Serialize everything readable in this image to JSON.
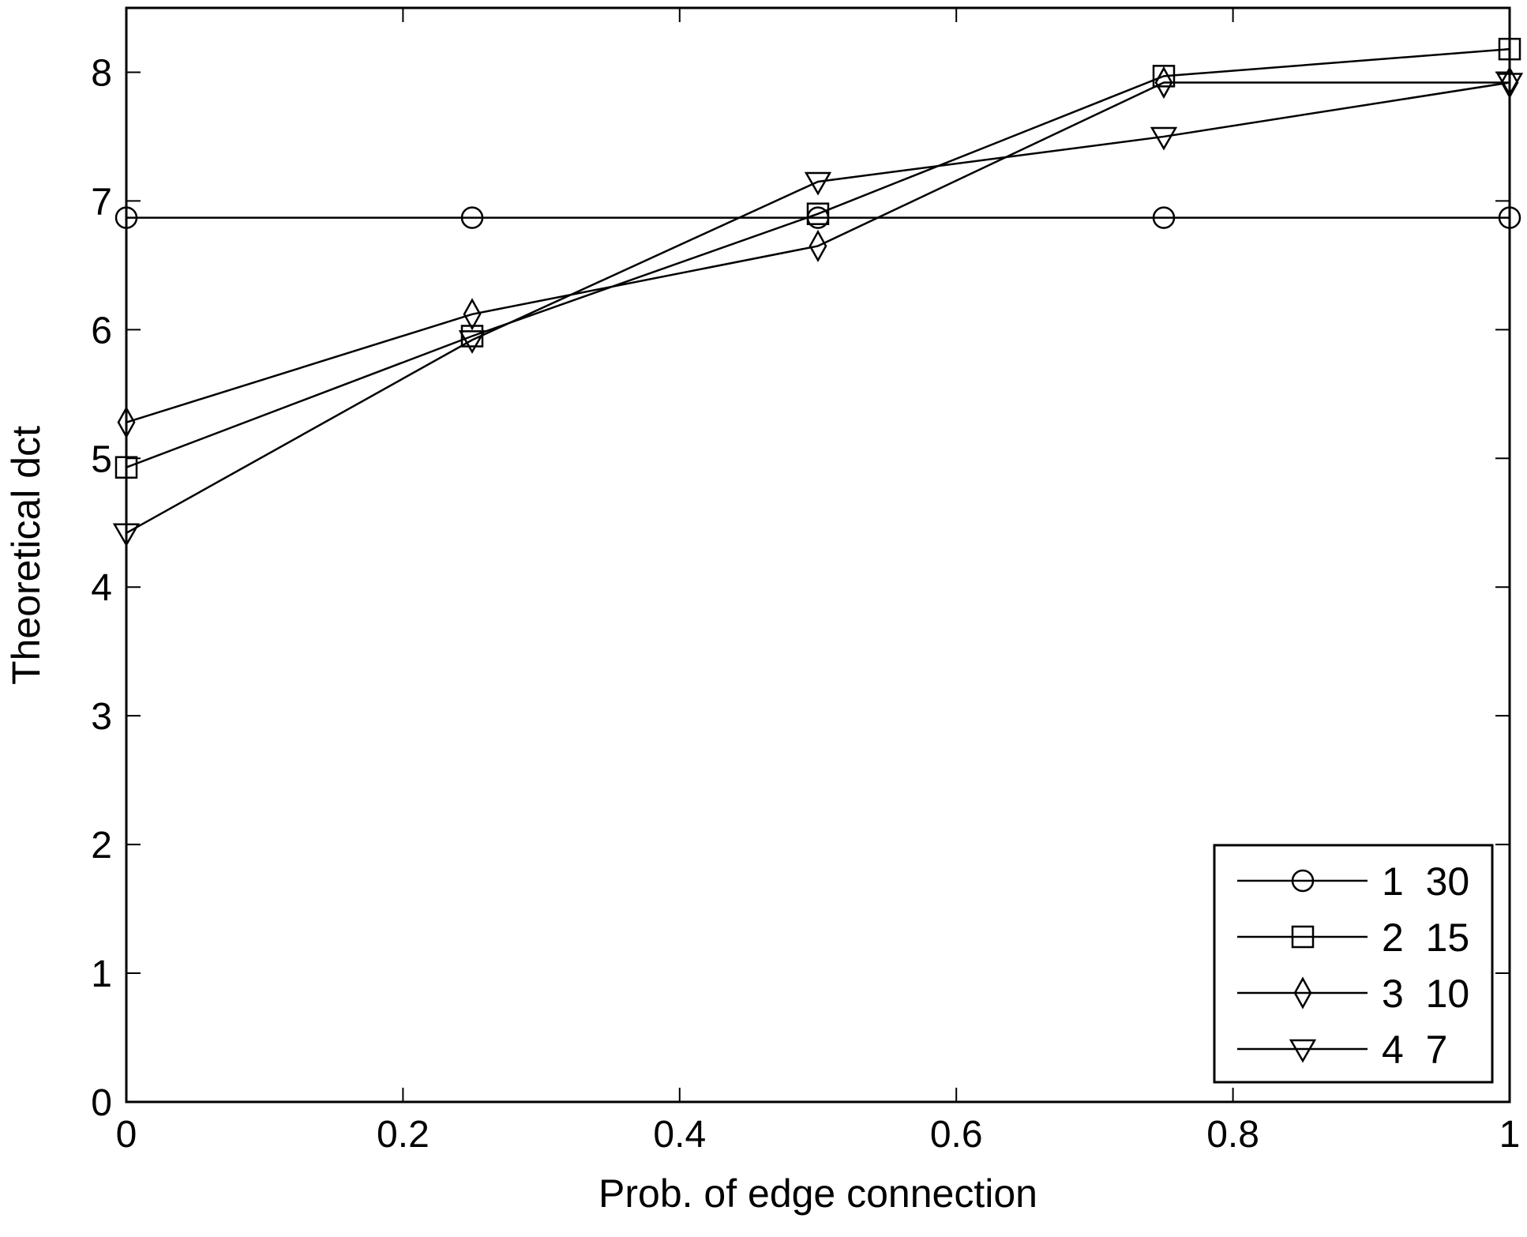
{
  "chart_data": {
    "type": "line",
    "title": "",
    "xlabel": "Prob. of edge connection",
    "ylabel": "Theoretical dct",
    "xlim": [
      0,
      1
    ],
    "ylim": [
      0,
      8.5
    ],
    "xticks": [
      0,
      0.2,
      0.4,
      0.6,
      0.8,
      1
    ],
    "xtick_labels": [
      "0",
      "0.2",
      "0.4",
      "0.6",
      "0.8",
      "1"
    ],
    "yticks": [
      0,
      1,
      2,
      3,
      4,
      5,
      6,
      7,
      8
    ],
    "ytick_labels": [
      "0",
      "1",
      "2",
      "3",
      "4",
      "5",
      "6",
      "7",
      "8"
    ],
    "grid": false,
    "legend": {
      "position": "bottom-right",
      "box": true
    },
    "x": [
      0,
      0.25,
      0.5,
      0.75,
      1
    ],
    "series": [
      {
        "name": "1  30",
        "marker": "circle",
        "values": [
          6.87,
          6.87,
          6.87,
          6.87,
          6.87
        ]
      },
      {
        "name": "2  15",
        "marker": "square",
        "values": [
          4.93,
          5.95,
          6.9,
          7.97,
          8.18
        ]
      },
      {
        "name": "3  10",
        "marker": "diamond",
        "values": [
          5.28,
          6.12,
          6.65,
          7.92,
          7.92
        ]
      },
      {
        "name": "4  7",
        "marker": "triangle-down",
        "values": [
          4.42,
          5.92,
          7.15,
          7.5,
          7.92
        ]
      }
    ],
    "colors": {
      "line": "#000000",
      "background": "#ffffff"
    }
  }
}
